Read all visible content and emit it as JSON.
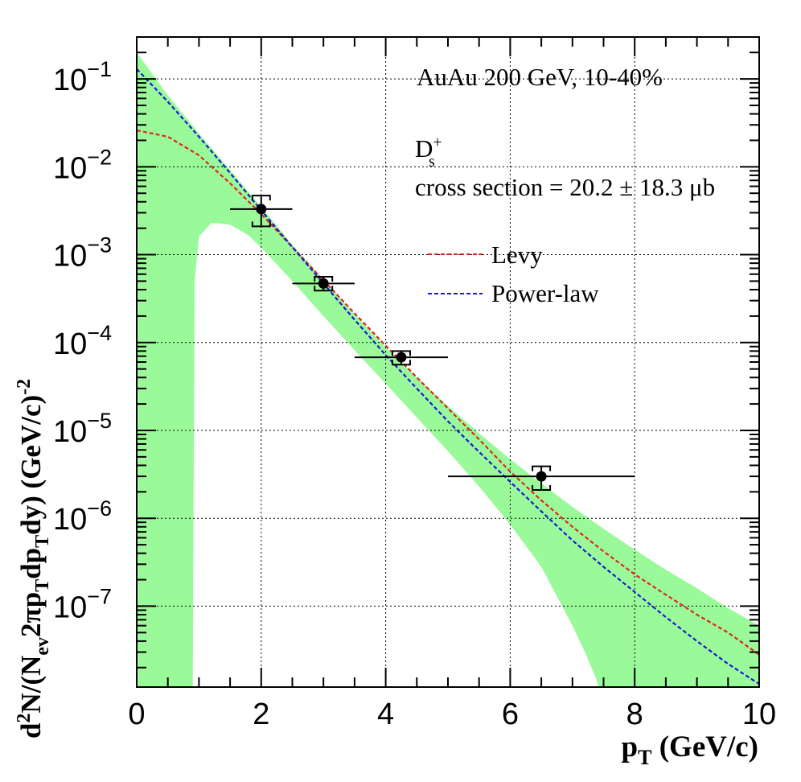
{
  "chart_data": {
    "type": "scatter",
    "log_y": true,
    "grid": true,
    "xlim": [
      0,
      10
    ],
    "ylim": [
      1.2e-08,
      0.3
    ],
    "x_ticks": [
      "0",
      "2",
      "4",
      "6",
      "8",
      "10"
    ],
    "y_tick_exponents": [
      "−1",
      "−2",
      "−3",
      "−4",
      "−5",
      "−6",
      "−7"
    ],
    "y_tick_base": "10",
    "xlabel": {
      "main": "p",
      "sub": "T",
      "rest": " (GeV/c)"
    },
    "ylabel": {
      "p1": "d",
      "p1sup": "2",
      "p2": "N/(N",
      "p2sub": "ev",
      "p3": "2πp",
      "p3sub": "T",
      "p4": "dp",
      "p4sub": "T",
      "p5": "dy) (GeV/c)",
      "p5sup": "-2"
    },
    "annotations": {
      "system": "AuAu 200 GeV, 10-40%",
      "particle": "D",
      "particle_sup": "+",
      "particle_sub": "s",
      "cross_section": "cross section = 20.2 ± 18.3 μb"
    },
    "legend_position": "top-right",
    "data_points": [
      {
        "x": 2.0,
        "y": 0.0033,
        "xerr": [
          0.5,
          0.5
        ],
        "yerr_low": 0.0021,
        "yerr_high": 0.0047
      },
      {
        "x": 3.0,
        "y": 0.00047,
        "xerr": [
          0.5,
          0.5
        ],
        "yerr_low": 0.00039,
        "yerr_high": 0.00056
      },
      {
        "x": 4.25,
        "y": 6.8e-05,
        "xerr": [
          0.75,
          0.75
        ],
        "yerr_low": 5.6e-05,
        "yerr_high": 8e-05
      },
      {
        "x": 6.5,
        "y": 3e-06,
        "xerr": [
          1.5,
          1.5
        ],
        "yerr_low": 2.1e-06,
        "yerr_high": 3.9e-06
      }
    ],
    "series": [
      {
        "name": "Levy",
        "color": "#e0261a",
        "style": "dashed",
        "x": [
          0,
          0.5,
          1.0,
          1.5,
          2.0,
          2.5,
          3.0,
          3.5,
          4.0,
          4.5,
          5.0,
          5.5,
          6.0,
          6.5,
          7.0,
          7.5,
          8.0,
          8.5,
          9.0,
          9.5,
          10.0
        ],
        "y": [
          0.026,
          0.022,
          0.0135,
          0.0065,
          0.0029,
          0.00122,
          0.00051,
          0.000215,
          9.2e-05,
          4e-05,
          1.78e-05,
          7.9e-06,
          3.4e-06,
          1.6e-06,
          8e-07,
          4.2e-07,
          2.3e-07,
          1.35e-07,
          8e-08,
          5e-08,
          2.8e-08
        ]
      },
      {
        "name": "Power-law",
        "color": "#1818d8",
        "style": "dashed",
        "x": [
          0,
          0.5,
          1.0,
          1.5,
          2.0,
          2.5,
          3.0,
          3.5,
          4.0,
          4.5,
          5.0,
          5.5,
          6.0,
          6.5,
          7.0,
          7.5,
          8.0,
          8.5,
          9.0,
          9.5,
          10.0
        ],
        "y": [
          0.13,
          0.055,
          0.022,
          0.0085,
          0.0032,
          0.00122,
          0.00047,
          0.000182,
          7.2e-05,
          3e-05,
          1.27e-05,
          5.7e-06,
          2.6e-06,
          1.2e-06,
          5.6e-07,
          2.8e-07,
          1.45e-07,
          7.5e-08,
          4e-08,
          2.2e-08,
          1.3e-08
        ]
      }
    ],
    "band": {
      "color": "#9afa9a",
      "upper": {
        "x": [
          0,
          0.5,
          1.0,
          1.5,
          2.0,
          2.5,
          3.0,
          3.5,
          4.0,
          4.5,
          5.0,
          5.5,
          6.0,
          6.5,
          7.0,
          7.5,
          8.0,
          8.5,
          9.0,
          9.5,
          10.0
        ],
        "y": [
          0.2,
          0.065,
          0.024,
          0.0092,
          0.0035,
          0.0013,
          0.00052,
          0.00021,
          8.8e-05,
          4e-05,
          1.9e-05,
          9.3e-06,
          4.7e-06,
          2.5e-06,
          1.35e-06,
          7.6e-07,
          4.4e-07,
          2.6e-07,
          1.6e-07,
          9.5e-08,
          6e-08
        ]
      },
      "lower": {
        "x": [
          0,
          0.9,
          0.93,
          1.0,
          1.2,
          1.5,
          1.8,
          2.0,
          2.5,
          3.0,
          3.5,
          4.0,
          4.5,
          5.0,
          5.5,
          6.0,
          6.5,
          7.0,
          7.2,
          7.38,
          7.42,
          10.0
        ],
        "y": [
          1.2e-08,
          1.2e-08,
          0.0005,
          0.0016,
          0.0023,
          0.0022,
          0.00165,
          0.0012,
          0.0005,
          0.0002,
          8.2e-05,
          3.4e-05,
          1.4e-05,
          5.8e-06,
          2.3e-06,
          8.5e-07,
          2.8e-07,
          6e-08,
          3e-08,
          1.5e-08,
          1.2e-08,
          1.2e-08
        ]
      }
    }
  }
}
